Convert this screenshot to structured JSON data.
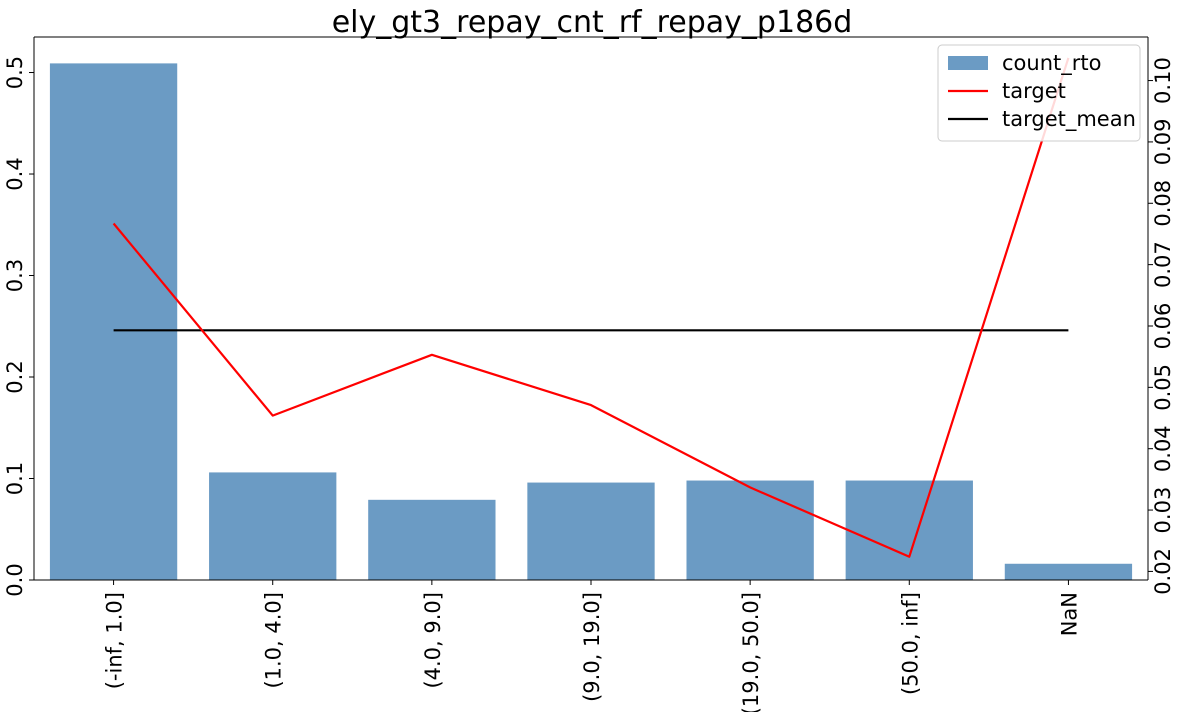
{
  "chart_data": {
    "type": "bar",
    "title": "ely_gt3_repay_cnt_rf_repay_p186d",
    "xlabel": "",
    "ylabel": "",
    "categories": [
      "(-inf, 1.0]",
      "(1.0, 4.0]",
      "(4.0, 9.0]",
      "(9.0, 19.0]",
      "(19.0, 50.0]",
      "(50.0, inf]",
      "NaN"
    ],
    "series": [
      {
        "name": "count_rto",
        "type": "bar",
        "axis": "left",
        "color": "#6b9bc4",
        "values": [
          0.509,
          0.106,
          0.079,
          0.096,
          0.098,
          0.098,
          0.016
        ]
      },
      {
        "name": "target",
        "type": "line",
        "axis": "right",
        "color": "#ff0000",
        "values": [
          0.0767,
          0.0454,
          0.0553,
          0.0471,
          0.0337,
          0.0224,
          0.1037
        ]
      },
      {
        "name": "target_mean",
        "type": "line",
        "axis": "right",
        "color": "#000000",
        "values": [
          0.0593,
          0.0593,
          0.0593,
          0.0593,
          0.0593,
          0.0593,
          0.0593
        ]
      }
    ],
    "ylim_left": [
      0,
      0.535
    ],
    "yticks_left": [
      "0.0",
      "0.1",
      "0.2",
      "0.3",
      "0.4",
      "0.5"
    ],
    "ylim_right": [
      0.0186,
      0.1071
    ],
    "yticks_right": [
      "0.02",
      "0.03",
      "0.04",
      "0.05",
      "0.06",
      "0.07",
      "0.08",
      "0.09",
      "0.10"
    ],
    "legend_position": "top-right",
    "grid": false
  }
}
